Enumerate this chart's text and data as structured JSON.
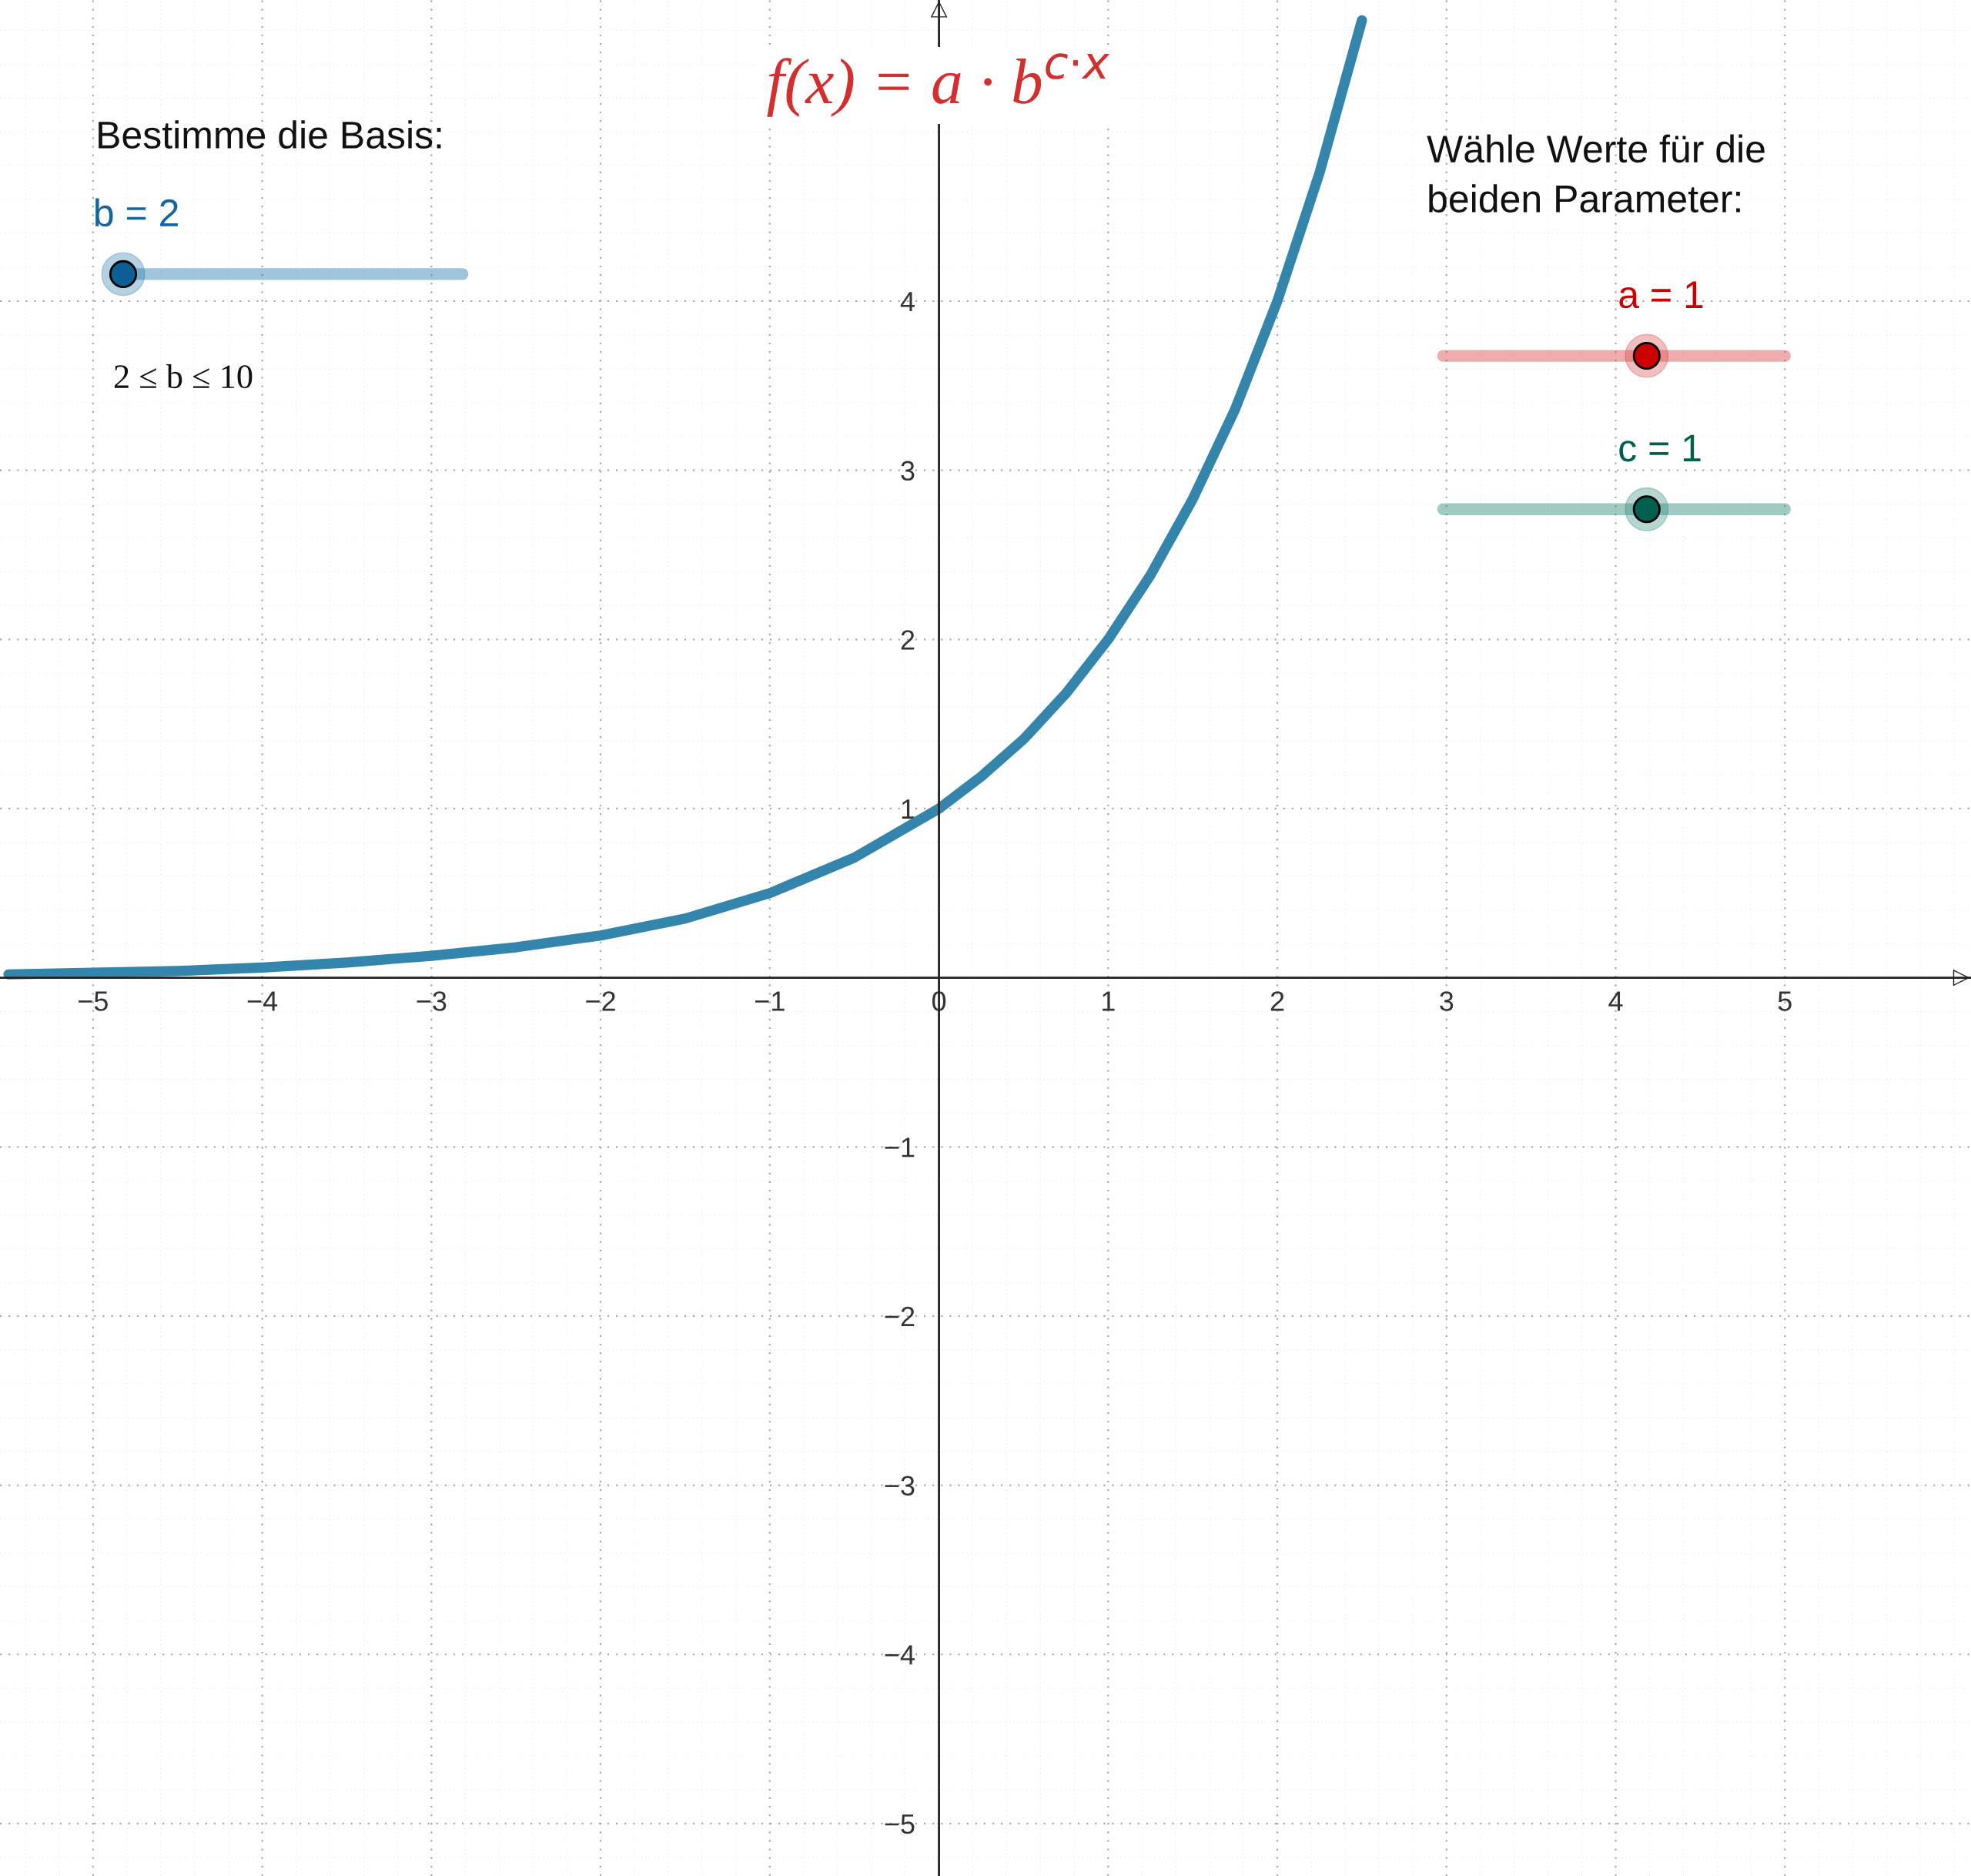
{
  "chart_data": {
    "type": "line",
    "title": "f(x) = a · b$^{c·x}$",
    "annotations": [
      "Bestimme die Basis:",
      "b = 2",
      "2 ≤ b ≤ 10",
      "Wähle Werte für die\nbeiden Parameter:",
      "a = 1",
      "c = 1"
    ],
    "x": [
      -5.5,
      -5,
      -4.5,
      -4,
      -3.5,
      -3,
      -2.5,
      -2,
      -1.5,
      -1,
      -0.5,
      0,
      0.25,
      0.5,
      0.75,
      1,
      1.25,
      1.5,
      1.75,
      2,
      2.25,
      2.5
    ],
    "series": [
      {
        "color": "#3385ab",
        "values": [
          0.02,
          0.03,
          0.04,
          0.06,
          0.09,
          0.13,
          0.18,
          0.25,
          0.35,
          0.5,
          0.71,
          1,
          1.19,
          1.41,
          1.68,
          2,
          2.38,
          2.83,
          3.36,
          4,
          4.76,
          5.66
        ]
      }
    ],
    "xlim": [
      -5.55,
      6.1
    ],
    "ylim": [
      -5.31,
      5.78
    ],
    "xticks": [
      {
        "value": -5,
        "label": "−5"
      },
      {
        "value": -4,
        "label": "−4"
      },
      {
        "value": -3,
        "label": "−3"
      },
      {
        "value": -2,
        "label": "−2"
      },
      {
        "value": -1,
        "label": "−1"
      },
      0,
      1,
      2,
      3,
      4,
      5
    ],
    "yticks": [
      {
        "value": -5,
        "label": "−5"
      },
      {
        "value": -4,
        "label": "−4"
      },
      {
        "value": -3,
        "label": "−3"
      },
      {
        "value": -2,
        "label": "−2"
      },
      {
        "value": -1,
        "label": "−1"
      },
      1,
      2,
      3,
      4
    ],
    "grid": true,
    "marker": "none",
    "line_style": "solid"
  }
}
